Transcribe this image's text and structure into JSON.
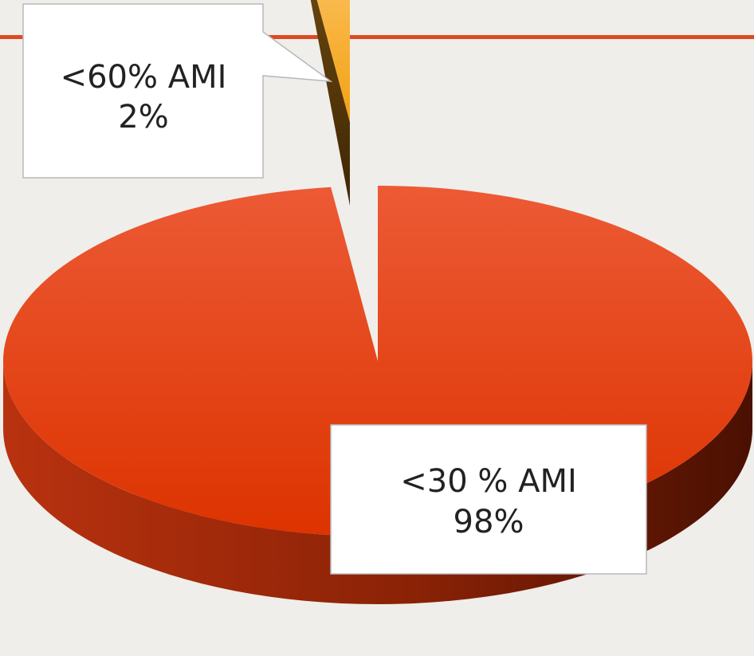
{
  "slide": {
    "accent_color": "#de4a23",
    "background_color": "#efeeea"
  },
  "chart_data": {
    "type": "pie",
    "style": "3d exploded pie",
    "slices": [
      {
        "label": "<30 % AMI",
        "value": 98,
        "value_label": "98%",
        "color": "#dd3a10"
      },
      {
        "label": "<60% AMI",
        "value": 2,
        "value_label": "2%",
        "color": "#f5a623"
      }
    ],
    "legend": "none",
    "data_labels": "callout boxes"
  }
}
